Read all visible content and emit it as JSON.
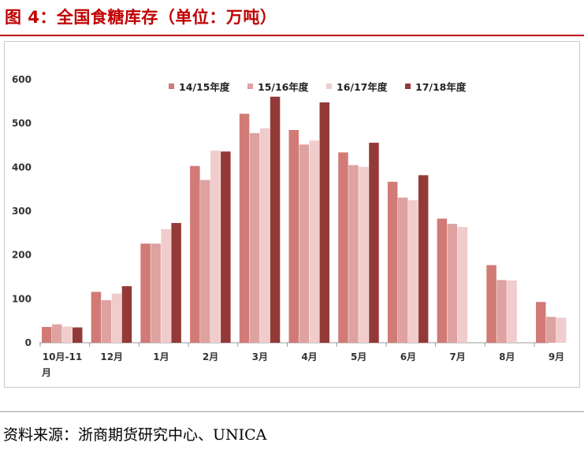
{
  "figure": {
    "title": "图 4：全国食糖库存（单位：万吨）",
    "source": "资料来源：浙商期货研究中心、UNICA"
  },
  "chart_data": {
    "type": "bar",
    "title": "",
    "xlabel": "",
    "ylabel": "",
    "ylim": [
      0,
      600
    ],
    "yticks": [
      "0",
      "100",
      "200",
      "300",
      "400",
      "500",
      "600"
    ],
    "grid": false,
    "legend_position": "top",
    "categories": [
      "10月-11\n月",
      "12月",
      "1月",
      "2月",
      "3月",
      "4月",
      "5月",
      "6月",
      "7月",
      "8月",
      "9月"
    ],
    "series": [
      {
        "name": "14/15年度",
        "color": "#d17a76",
        "values": [
          36,
          116,
          226,
          403,
          522,
          485,
          434,
          367,
          283,
          177,
          93
        ]
      },
      {
        "name": "15/16年度",
        "color": "#dea2a0",
        "values": [
          42,
          97,
          226,
          371,
          478,
          452,
          405,
          331,
          271,
          143,
          59
        ]
      },
      {
        "name": "16/17年度",
        "color": "#f0cccc",
        "values": [
          37,
          112,
          259,
          438,
          489,
          461,
          401,
          325,
          264,
          142,
          57
        ]
      },
      {
        "name": "17/18年度",
        "color": "#933a38",
        "values": [
          35,
          129,
          273,
          436,
          561,
          548,
          456,
          382,
          null,
          null,
          null
        ]
      }
    ]
  }
}
